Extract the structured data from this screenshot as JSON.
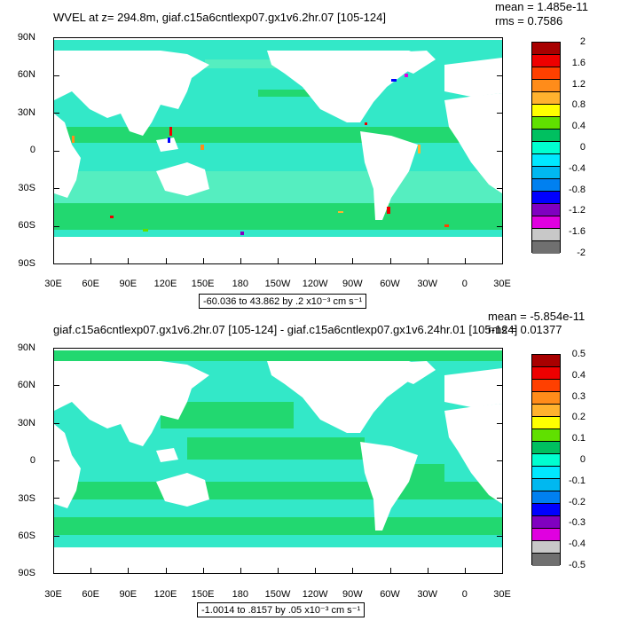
{
  "panel1": {
    "title": "WVEL at z= 294.8m, giaf.c15a6cntlexp07.gx1v6.2hr.07 [105-124]",
    "mean": "mean = 1.485e-11",
    "rms": "rms = 0.7586",
    "range_label": "-60.036 to 43.862 by .2 x10⁻³ cm s⁻¹",
    "colorbar_labels": [
      "2",
      "1.6",
      "1.2",
      "0.8",
      "0.4",
      "0",
      "-0.4",
      "-0.8",
      "-1.2",
      "-1.6",
      "-2"
    ]
  },
  "panel2": {
    "title": "giaf.c15a6cntlexp07.gx1v6.2hr.07 [105-124] - giaf.c15a6cntlexp07.gx1v6.24hr.01 [105-124]",
    "mean": "mean = -5.854e-11",
    "rms": "rms = 0.01377",
    "range_label": "-1.0014 to .8157 by .05 x10⁻³ cm s⁻¹",
    "colorbar_labels": [
      "0.5",
      "0.4",
      "0.3",
      "0.2",
      "0.1",
      "0",
      "-0.1",
      "-0.2",
      "-0.3",
      "-0.4",
      "-0.5"
    ]
  },
  "lat_labels": [
    "90N",
    "60N",
    "30N",
    "0",
    "30S",
    "60S",
    "90S"
  ],
  "lon_labels": [
    "30E",
    "60E",
    "90E",
    "120E",
    "150E",
    "180",
    "150W",
    "120W",
    "90W",
    "60W",
    "30W",
    "0",
    "30E"
  ],
  "colors": {
    "palette": [
      "#a80000",
      "#ee0000",
      "#ff4000",
      "#ff8c1a",
      "#ffb22e",
      "#ffff00",
      "#60e000",
      "#00c060",
      "#00ffd0",
      "#00e8ff",
      "#00b8f0",
      "#0080f0",
      "#0000ff",
      "#8000c0",
      "#e000e0",
      "#c8c8c8",
      "#707070"
    ],
    "ocean_main": "#33e8c8",
    "ocean_light": "#55eec0",
    "ocean_green": "#22d870",
    "land": "#ffffff"
  }
}
